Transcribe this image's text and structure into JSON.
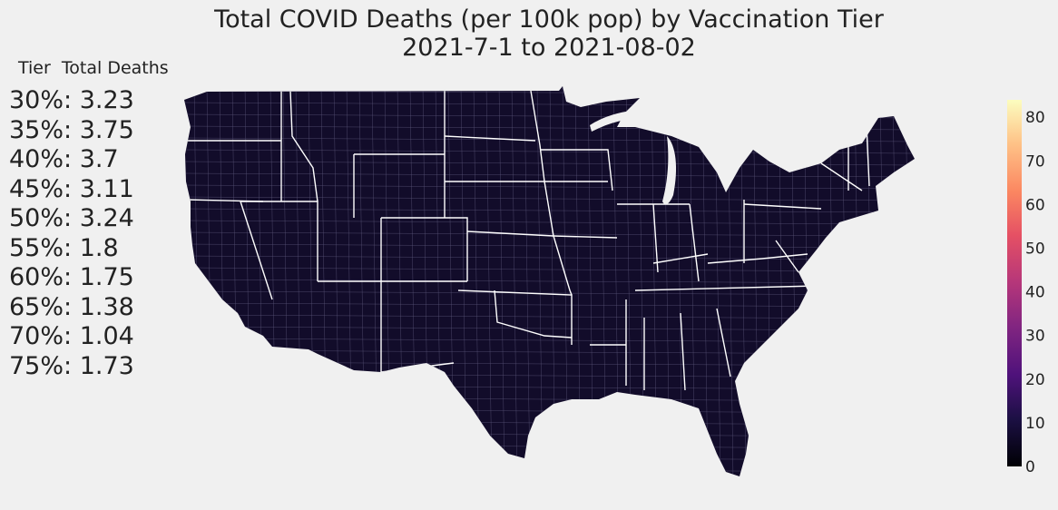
{
  "title": {
    "line1": "Total COVID Deaths (per 100k pop) by Vaccination Tier",
    "line2": "2021-7-1 to 2021-08-02"
  },
  "table_header": {
    "tier_label": "Tier",
    "deaths_label": "Total Deaths"
  },
  "tiers": [
    {
      "tier": "30%",
      "deaths": 3.23
    },
    {
      "tier": "35%",
      "deaths": 3.75
    },
    {
      "tier": "40%",
      "deaths": 3.7
    },
    {
      "tier": "45%",
      "deaths": 3.11
    },
    {
      "tier": "50%",
      "deaths": 3.24
    },
    {
      "tier": "55%",
      "deaths": 1.8
    },
    {
      "tier": "60%",
      "deaths": 1.75
    },
    {
      "tier": "65%",
      "deaths": 1.38
    },
    {
      "tier": "70%",
      "deaths": 1.04
    },
    {
      "tier": "75%",
      "deaths": 1.73
    }
  ],
  "colorbar": {
    "colormap": "magma",
    "min": 0,
    "max": 84,
    "ticks": [
      0,
      10,
      20,
      30,
      40,
      50,
      60,
      70,
      80
    ]
  },
  "map": {
    "region": "contiguous United States",
    "fill_color": "#120c2a",
    "county_border_color": "#5a5578",
    "state_border_color": "#ffffff"
  }
}
